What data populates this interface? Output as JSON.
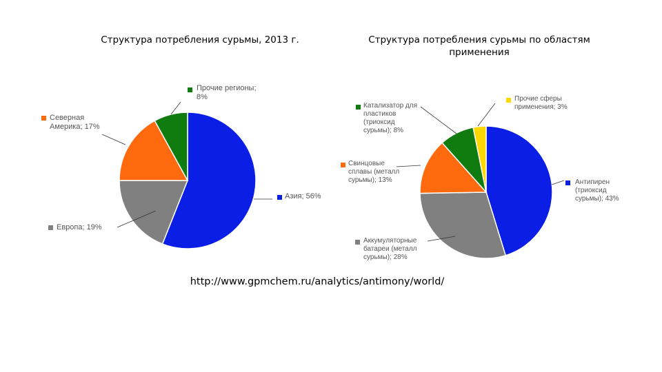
{
  "source": "http://www.gpmchem.ru/analytics/antimony/world/",
  "chart_data": [
    {
      "type": "pie",
      "title": "Структура потребления сурьмы, 2013 г.",
      "slices": [
        {
          "name": "Азия",
          "value": 56,
          "color": "#0b1ee6",
          "label_lines": [
            "Азия; 56%"
          ]
        },
        {
          "name": "Европа",
          "value": 19,
          "color": "#808080",
          "label_lines": [
            "Европа; 19%"
          ]
        },
        {
          "name": "Северная Америка",
          "value": 17,
          "color": "#ff6a0e",
          "label_lines": [
            "Северная",
            "Америка; 17%"
          ]
        },
        {
          "name": "Прочие регионы",
          "value": 8,
          "color": "#107c10",
          "label_lines": [
            "Прочие регионы;",
            "8%"
          ]
        }
      ]
    },
    {
      "type": "pie",
      "title": "Структура потребления сурьмы по областям применения",
      "slices": [
        {
          "name": "Антипирен (триоксид сурьмы)",
          "value": 43,
          "color": "#0b1ee6",
          "label_lines": [
            "Антипирен",
            "(триоксид",
            "сурьмы); 43%"
          ]
        },
        {
          "name": "Аккумуляторные батареи (металл сурьмы)",
          "value": 28,
          "color": "#808080",
          "label_lines": [
            "Аккумуляторные",
            "батареи (металл",
            "сурьмы); 28%"
          ]
        },
        {
          "name": "Свинцовые сплавы (металл сурьмы)",
          "value": 13,
          "color": "#ff6a0e",
          "label_lines": [
            "Свинцовые",
            "сплавы (металл",
            "сурьмы); 13%"
          ]
        },
        {
          "name": "Катализатор для пластиков (триоксид сурьмы)",
          "value": 8,
          "color": "#107c10",
          "label_lines": [
            "Катализатор для",
            "пластиков",
            "(триоксид",
            "сурьмы); 8%"
          ]
        },
        {
          "name": "Прочие сферы применения",
          "value": 3,
          "color": "#ffd700",
          "label_lines": [
            "Прочие сферы",
            "применения; 3%"
          ]
        }
      ]
    }
  ]
}
